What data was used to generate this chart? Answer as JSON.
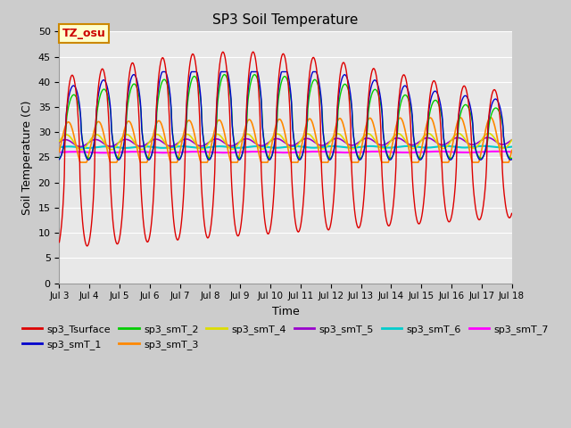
{
  "title": "SP3 Soil Temperature",
  "xlabel": "Time",
  "ylabel": "Soil Temperature (C)",
  "ylim": [
    0,
    50
  ],
  "xlim_days": [
    3,
    18
  ],
  "annotation": "TZ_osu",
  "series_colors": {
    "sp3_Tsurface": "#dd0000",
    "sp3_smT_1": "#0000cc",
    "sp3_smT_2": "#00cc00",
    "sp3_smT_3": "#ff8800",
    "sp3_smT_4": "#dddd00",
    "sp3_smT_5": "#9900cc",
    "sp3_smT_6": "#00cccc",
    "sp3_smT_7": "#ff00ff"
  },
  "x_tick_labels": [
    "Jul 3",
    "Jul 4",
    "Jul 5",
    "Jul 6",
    "Jul 7",
    "Jul 8",
    "Jul 9",
    "Jul 10",
    "Jul 11",
    "Jul 12",
    "Jul 13",
    "Jul 14",
    "Jul 15",
    "Jul 16",
    "Jul 17",
    "Jul 18"
  ],
  "x_tick_pos": [
    3,
    4,
    5,
    6,
    7,
    8,
    9,
    10,
    11,
    12,
    13,
    14,
    15,
    16,
    17,
    18
  ],
  "y_ticks": [
    0,
    5,
    10,
    15,
    20,
    25,
    30,
    35,
    40,
    45,
    50
  ]
}
